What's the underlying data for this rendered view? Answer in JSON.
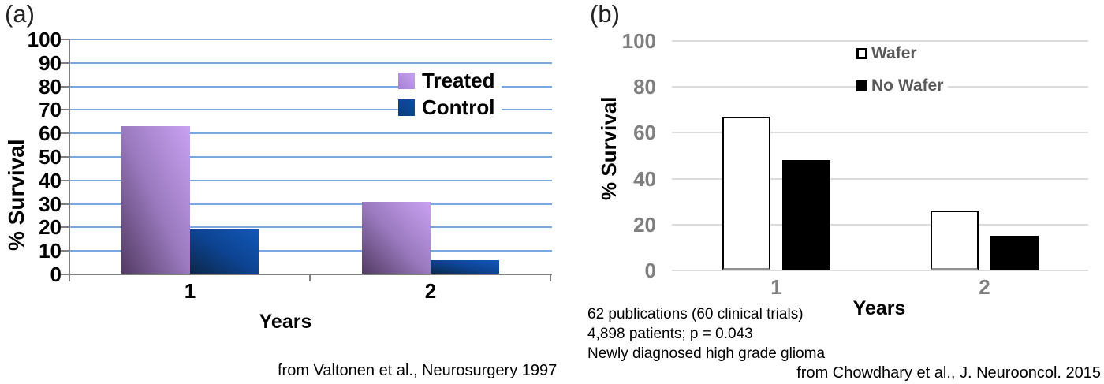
{
  "figure": {
    "panel_a_label": "(a)",
    "panel_b_label": "(b)"
  },
  "chart_data": [
    {
      "panel": "a",
      "type": "bar",
      "categories": [
        "1",
        "2"
      ],
      "series": [
        {
          "name": "Treated",
          "values": [
            63,
            31
          ],
          "color": "#9b7abf",
          "color_dark": "#523a62",
          "color_light": "#c9a2f2",
          "legend_color_dark": "#a87fd6",
          "legend_color_light": "#c5a4ec"
        },
        {
          "name": "Control",
          "values": [
            19,
            6
          ],
          "color": "#0d4391",
          "color_dark": "#0b2748",
          "color_light": "#1158b8",
          "legend_color_dark": "#0b3d82",
          "legend_color_light": "#0e4da3"
        }
      ],
      "xlabel": "Years",
      "ylabel": "% Survival",
      "ylim": [
        0,
        100
      ],
      "yticks": [
        0,
        10,
        20,
        30,
        40,
        50,
        60,
        70,
        80,
        90,
        100
      ],
      "grid": true,
      "gridline_color": "#78a8de",
      "axis_color": "#808080",
      "text_color": "#000000",
      "legend_position": "inside-top-right",
      "source": "from Valtonen et al., Neurosurgery 1997"
    },
    {
      "panel": "b",
      "type": "bar",
      "categories": [
        "1",
        "2"
      ],
      "series": [
        {
          "name": "Wafer",
          "values": [
            67,
            26
          ],
          "fill": "#ffffff",
          "border": "#000000",
          "border_bottom": "#909090"
        },
        {
          "name": "No Wafer",
          "values": [
            48,
            15
          ],
          "fill": "#000000"
        }
      ],
      "xlabel": "Years",
      "ylabel": "% Survival",
      "ylim": [
        0,
        100
      ],
      "yticks": [
        0,
        20,
        40,
        60,
        80,
        100
      ],
      "grid": true,
      "gridline_color": "#dcdcdc",
      "tick_label_color": "#7f7f7f",
      "legend_text_color": "#595959",
      "legend_position": "inside-top-right",
      "annotations": [
        "62 publications (60 clinical trials)",
        "4,898 patients; p = 0.043",
        "Newly diagnosed high grade glioma"
      ],
      "source": "from Chowdhary et al., J. Neurooncol. 2015"
    }
  ]
}
